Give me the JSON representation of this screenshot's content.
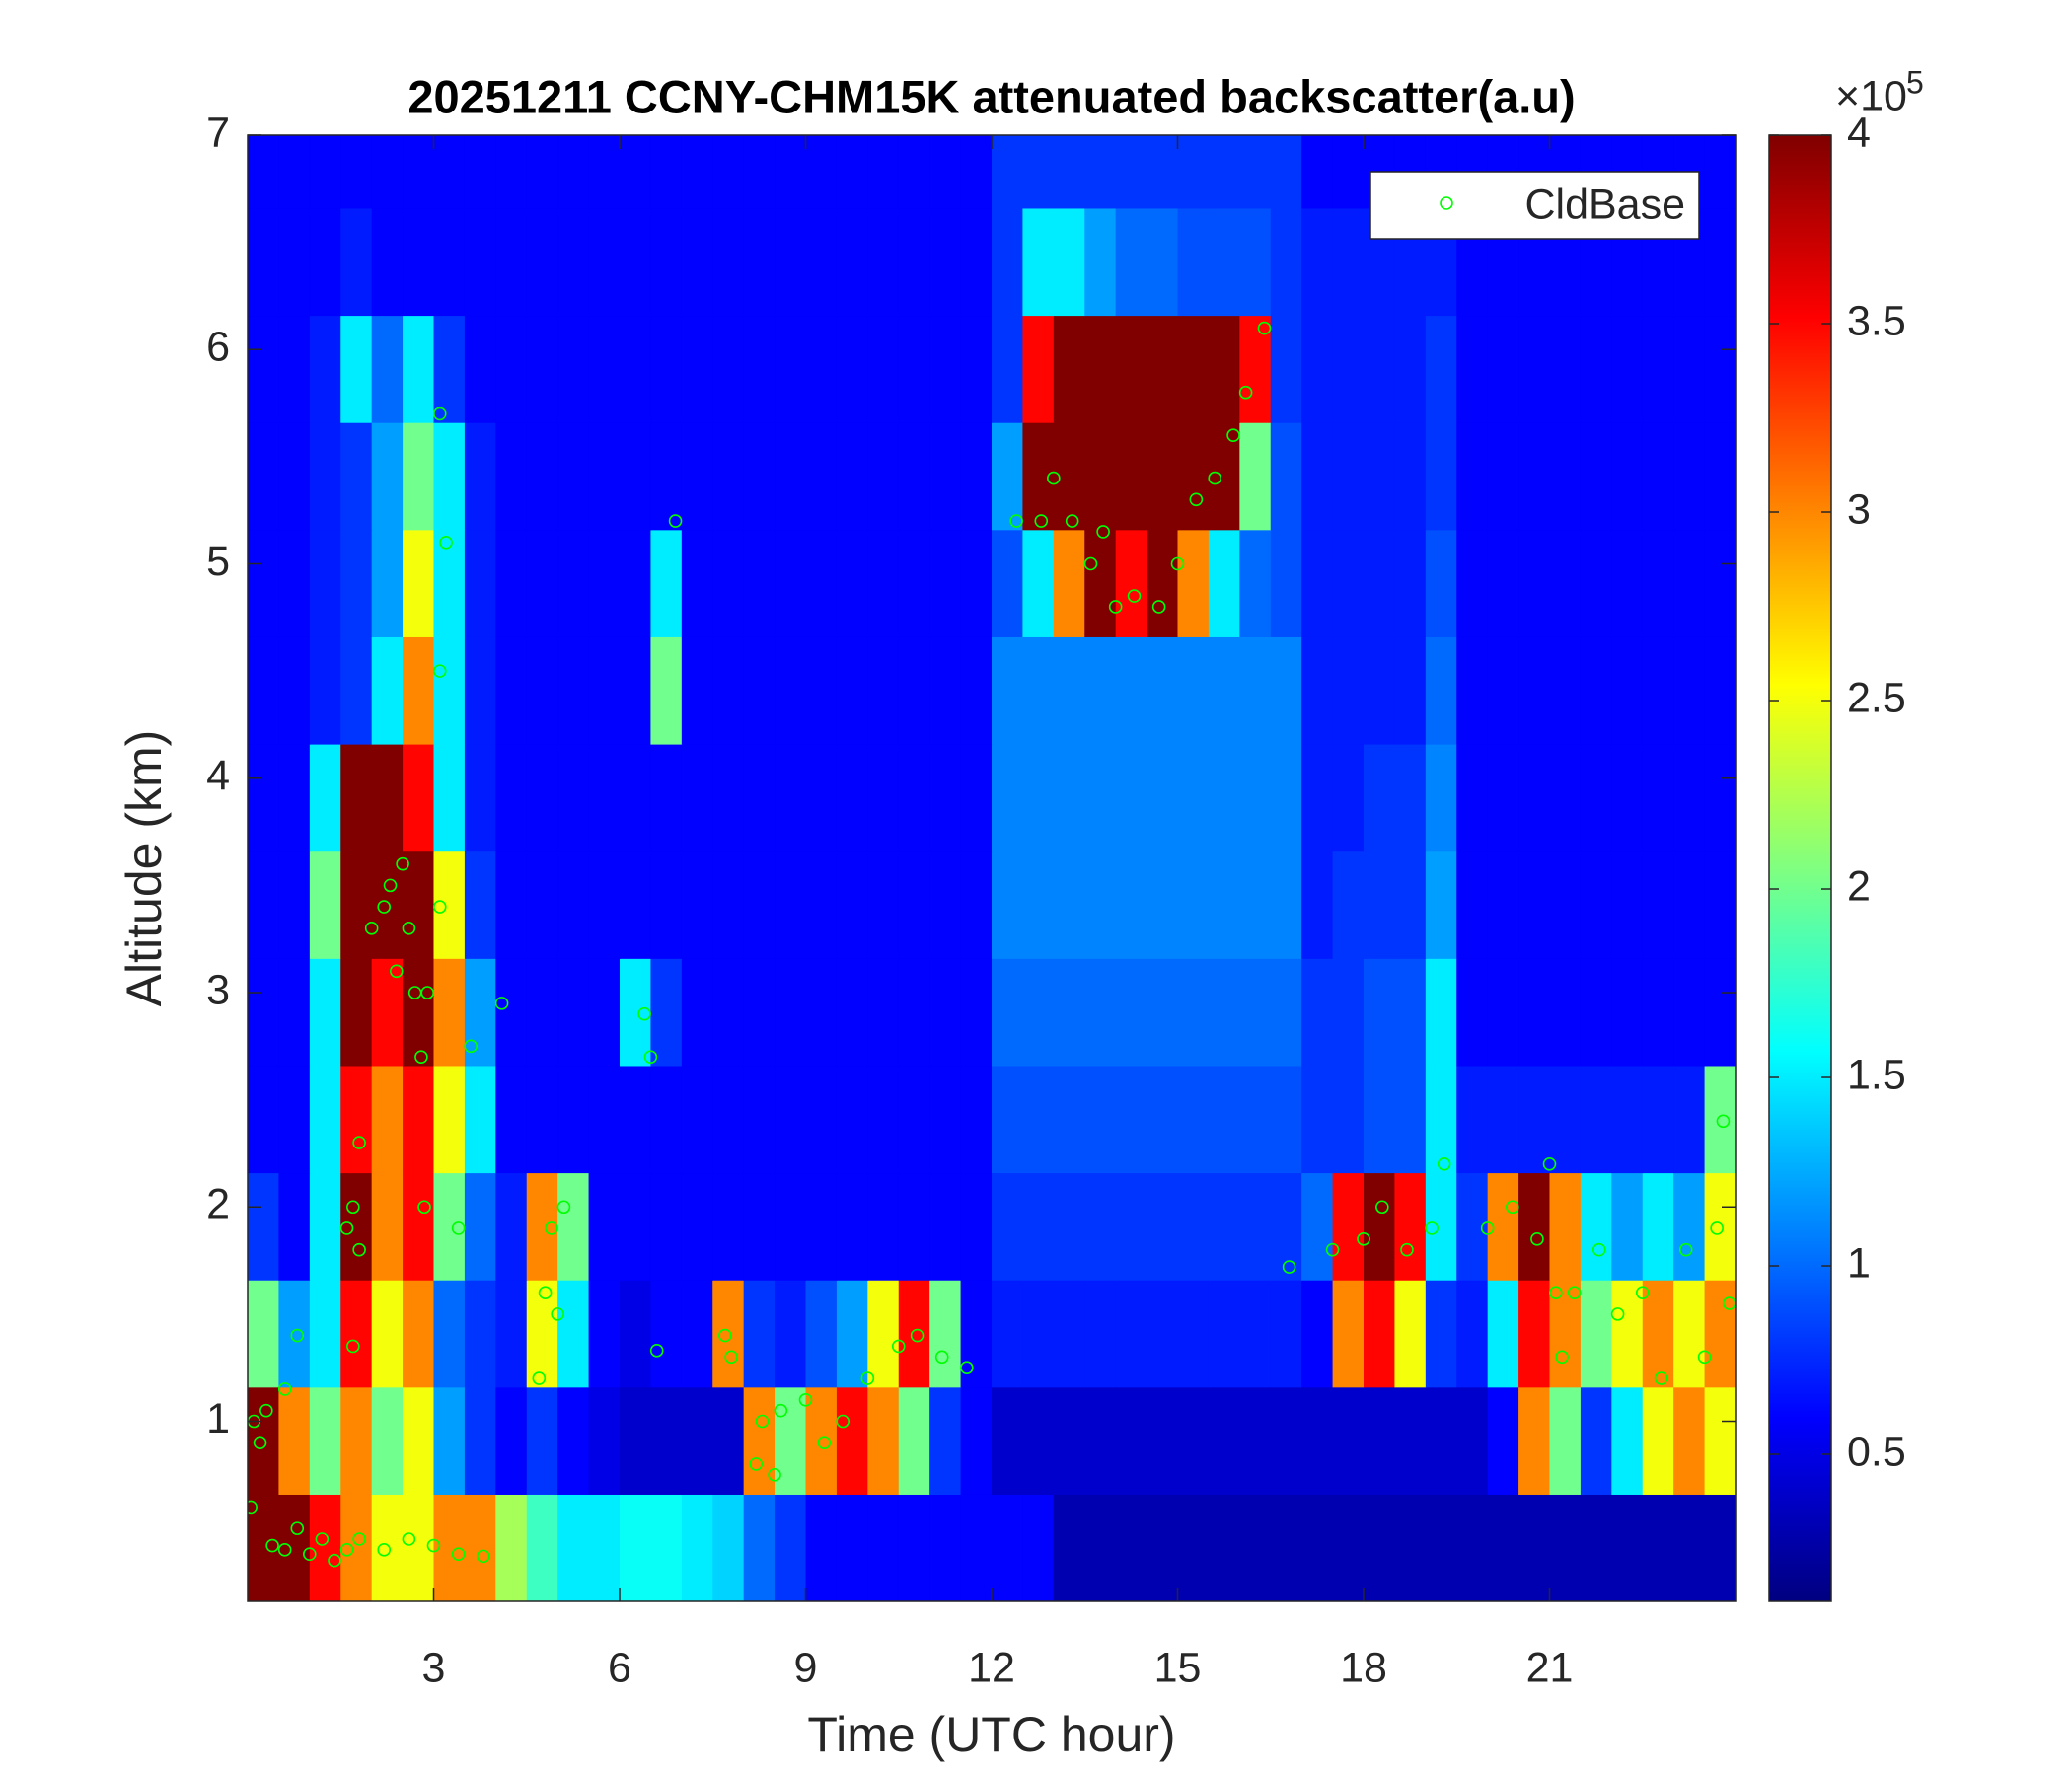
{
  "chart_data": {
    "type": "heatmap",
    "title": "20251211 CCNY-CHM15K attenuated backscatter(a.u)",
    "xlabel": "Time (UTC hour)",
    "ylabel": "Altitude (km)",
    "x": [
      0.25,
      0.75,
      1.25,
      1.75,
      2.25,
      2.75,
      3.25,
      3.75,
      4.25,
      4.75,
      5.25,
      5.75,
      6.25,
      6.75,
      7.25,
      7.75,
      8.25,
      8.75,
      9.25,
      9.75,
      10.25,
      10.75,
      11.25,
      11.75,
      12.25,
      12.75,
      13.25,
      13.75,
      14.25,
      14.75,
      15.25,
      15.75,
      16.25,
      16.75,
      17.25,
      17.75,
      18.25,
      18.75,
      19.25,
      19.75,
      20.25,
      20.75,
      21.25,
      21.75,
      22.25,
      22.75,
      23.25,
      23.75
    ],
    "y": [
      0.41,
      0.91,
      1.41,
      1.91,
      2.41,
      2.91,
      3.41,
      3.91,
      4.41,
      4.91,
      5.41,
      5.91,
      6.41,
      6.91
    ],
    "z": [
      [
        4,
        4,
        3.5,
        3,
        2.5,
        2.5,
        3,
        3,
        2.2,
        1.8,
        1.5,
        1.5,
        1.6,
        1.6,
        1.5,
        1.4,
        1.0,
        0.8,
        0.6,
        0.6,
        0.6,
        0.6,
        0.6,
        0.6,
        0.6,
        0.6,
        0.3,
        0.3,
        0.3,
        0.3,
        0.3,
        0.3,
        0.3,
        0.3,
        0.3,
        0.3,
        0.3,
        0.3,
        0.3,
        0.3,
        0.3,
        0.3,
        0.3,
        0.3,
        0.3,
        0.3,
        0.3,
        0.3
      ],
      [
        4,
        3,
        2,
        3,
        2,
        2.5,
        1.2,
        0.8,
        0.6,
        0.8,
        0.6,
        0.5,
        0.4,
        0.4,
        0.4,
        0.4,
        3,
        2,
        3,
        3.5,
        3,
        2,
        0.8,
        0.6,
        0.4,
        0.4,
        0.4,
        0.4,
        0.4,
        0.4,
        0.4,
        0.4,
        0.4,
        0.4,
        0.4,
        0.4,
        0.4,
        0.4,
        0.4,
        0.4,
        0.6,
        3,
        2,
        0.8,
        1.5,
        2.5,
        3,
        2.5
      ],
      [
        2,
        1.2,
        1.5,
        3.5,
        2.5,
        3,
        1,
        0.8,
        0.7,
        2.5,
        1.5,
        0.6,
        0.5,
        0.6,
        0.6,
        3,
        0.8,
        0.7,
        0.9,
        1.2,
        2.5,
        3.5,
        2,
        0.6,
        0.7,
        0.7,
        0.7,
        0.7,
        0.7,
        0.7,
        0.7,
        0.7,
        0.7,
        0.7,
        0.6,
        3,
        3.5,
        2.5,
        0.8,
        0.7,
        1.5,
        3.5,
        3,
        2,
        2.5,
        3,
        2.5,
        3
      ],
      [
        0.8,
        0.6,
        1.5,
        4,
        3,
        3.5,
        2,
        1,
        0.7,
        3,
        2,
        0.6,
        0.6,
        0.6,
        0.6,
        0.6,
        0.6,
        0.6,
        0.6,
        0.6,
        0.6,
        0.6,
        0.6,
        0.6,
        0.8,
        0.8,
        0.8,
        0.8,
        0.8,
        0.8,
        0.8,
        0.8,
        0.8,
        0.8,
        1,
        3.5,
        4,
        3.5,
        1.5,
        0.8,
        3,
        4,
        3,
        1.5,
        1.2,
        1.5,
        1.2,
        2.5
      ],
      [
        0.6,
        0.6,
        1.5,
        3.5,
        3,
        3.5,
        2.5,
        1.5,
        0.6,
        0.6,
        0.6,
        0.6,
        0.6,
        0.6,
        0.6,
        0.6,
        0.6,
        0.6,
        0.6,
        0.6,
        0.6,
        0.6,
        0.6,
        0.6,
        0.9,
        0.9,
        0.9,
        0.9,
        0.9,
        0.9,
        0.9,
        0.9,
        0.9,
        0.9,
        0.8,
        0.8,
        0.9,
        0.9,
        1.5,
        0.7,
        0.7,
        0.7,
        0.7,
        0.7,
        0.7,
        0.7,
        0.7,
        2
      ],
      [
        0.6,
        0.6,
        1.5,
        4,
        3.5,
        4,
        3,
        1.2,
        0.6,
        0.6,
        0.6,
        0.6,
        1.5,
        0.8,
        0.6,
        0.6,
        0.6,
        0.6,
        0.6,
        0.6,
        0.6,
        0.6,
        0.6,
        0.6,
        1.0,
        1.0,
        1.0,
        1.0,
        1.0,
        1.0,
        1.0,
        1.0,
        1.0,
        1.0,
        0.8,
        0.8,
        0.9,
        0.9,
        1.5,
        0.6,
        0.6,
        0.6,
        0.6,
        0.6,
        0.6,
        0.6,
        0.6,
        0.6
      ],
      [
        0.6,
        0.6,
        2,
        4,
        4,
        4,
        2.5,
        0.8,
        0.6,
        0.6,
        0.6,
        0.6,
        0.6,
        0.6,
        0.6,
        0.6,
        0.6,
        0.6,
        0.6,
        0.6,
        0.6,
        0.6,
        0.6,
        0.6,
        1.1,
        1.1,
        1.1,
        1.1,
        1.1,
        1.1,
        1.1,
        1.1,
        1.1,
        1.1,
        0.7,
        0.8,
        0.8,
        0.8,
        1.2,
        0.6,
        0.6,
        0.6,
        0.6,
        0.6,
        0.6,
        0.6,
        0.6,
        0.6
      ],
      [
        0.6,
        0.6,
        1.5,
        4,
        4,
        3.5,
        1.5,
        0.7,
        0.6,
        0.6,
        0.6,
        0.6,
        0.6,
        0.6,
        0.6,
        0.6,
        0.6,
        0.6,
        0.6,
        0.6,
        0.6,
        0.6,
        0.6,
        0.6,
        1.1,
        1.1,
        1.1,
        1.1,
        1.1,
        1.1,
        1.1,
        1.1,
        1.1,
        1.1,
        0.7,
        0.7,
        0.8,
        0.8,
        1.1,
        0.6,
        0.6,
        0.6,
        0.6,
        0.6,
        0.6,
        0.6,
        0.6,
        0.6
      ],
      [
        0.6,
        0.6,
        0.7,
        0.8,
        1.5,
        3,
        1.5,
        0.7,
        0.6,
        0.6,
        0.6,
        0.6,
        0.6,
        2.0,
        0.6,
        0.6,
        0.6,
        0.6,
        0.6,
        0.6,
        0.6,
        0.6,
        0.6,
        0.6,
        1.1,
        1.1,
        1.1,
        1.1,
        1.1,
        1.1,
        1.1,
        1.1,
        1.1,
        1.1,
        0.7,
        0.7,
        0.7,
        0.7,
        1.0,
        0.6,
        0.6,
        0.6,
        0.6,
        0.6,
        0.6,
        0.6,
        0.6,
        0.6
      ],
      [
        0.6,
        0.6,
        0.7,
        0.8,
        1.2,
        2.5,
        1.5,
        0.7,
        0.6,
        0.6,
        0.6,
        0.6,
        0.6,
        1.5,
        0.6,
        0.6,
        0.6,
        0.6,
        0.6,
        0.6,
        0.6,
        0.6,
        0.6,
        0.6,
        0.9,
        1.5,
        3,
        4,
        3.5,
        4,
        3,
        1.5,
        1,
        0.9,
        0.7,
        0.7,
        0.7,
        0.7,
        0.9,
        0.6,
        0.6,
        0.6,
        0.6,
        0.6,
        0.6,
        0.6,
        0.6,
        0.6
      ],
      [
        0.6,
        0.6,
        0.7,
        0.8,
        1.2,
        2,
        1.5,
        0.7,
        0.6,
        0.6,
        0.6,
        0.6,
        0.6,
        0.6,
        0.6,
        0.6,
        0.6,
        0.6,
        0.6,
        0.6,
        0.6,
        0.6,
        0.6,
        0.6,
        1.2,
        4,
        4,
        4,
        4,
        4,
        4,
        4,
        2,
        0.9,
        0.7,
        0.7,
        0.7,
        0.7,
        0.8,
        0.6,
        0.6,
        0.6,
        0.6,
        0.6,
        0.6,
        0.6,
        0.6,
        0.6
      ],
      [
        0.6,
        0.6,
        0.7,
        1.5,
        1,
        1.5,
        0.8,
        0.6,
        0.6,
        0.6,
        0.6,
        0.6,
        0.6,
        0.6,
        0.6,
        0.6,
        0.6,
        0.6,
        0.6,
        0.6,
        0.6,
        0.6,
        0.6,
        0.6,
        0.8,
        3.5,
        4,
        4,
        4,
        4,
        4,
        4,
        3.5,
        0.8,
        0.7,
        0.7,
        0.7,
        0.7,
        0.8,
        0.6,
        0.6,
        0.6,
        0.6,
        0.6,
        0.6,
        0.6,
        0.6,
        0.6
      ],
      [
        0.6,
        0.6,
        0.6,
        0.7,
        0.6,
        0.6,
        0.6,
        0.6,
        0.6,
        0.6,
        0.6,
        0.6,
        0.6,
        0.6,
        0.6,
        0.6,
        0.6,
        0.6,
        0.6,
        0.6,
        0.6,
        0.6,
        0.6,
        0.6,
        0.8,
        1.5,
        1.5,
        1.2,
        1,
        1,
        0.9,
        0.9,
        0.9,
        0.8,
        0.7,
        0.7,
        0.7,
        0.7,
        0.7,
        0.6,
        0.6,
        0.6,
        0.6,
        0.6,
        0.6,
        0.6,
        0.6,
        0.6
      ],
      [
        0.6,
        0.6,
        0.6,
        0.6,
        0.6,
        0.6,
        0.6,
        0.6,
        0.6,
        0.6,
        0.6,
        0.6,
        0.6,
        0.6,
        0.6,
        0.6,
        0.6,
        0.6,
        0.6,
        0.6,
        0.6,
        0.6,
        0.6,
        0.6,
        0.8,
        0.8,
        0.8,
        0.8,
        0.8,
        0.8,
        0.8,
        0.8,
        0.8,
        0.8,
        0.6,
        0.6,
        0.6,
        0.6,
        0.6,
        0.6,
        0.6,
        0.6,
        0.6,
        0.6,
        0.6,
        0.6,
        0.6,
        0.6
      ]
    ],
    "xlim": [
      0,
      24
    ],
    "ylim": [
      0.16,
      7
    ],
    "xticks": [
      3,
      6,
      9,
      12,
      15,
      18,
      21
    ],
    "yticks": [
      1,
      2,
      3,
      4,
      5,
      6,
      7
    ],
    "colormap": "jet",
    "clim": [
      0.11,
      4
    ],
    "colorbar_ticks": [
      0.5,
      1,
      1.5,
      2,
      2.5,
      3,
      3.5,
      4
    ],
    "colorbar_multiplier": {
      "base": "×10",
      "exponent": "5"
    },
    "legend": "upper right",
    "overlay": {
      "type": "scatter",
      "name": "CldBase",
      "color": "#00ff00",
      "marker": "open-circle",
      "x": [
        0.05,
        0.1,
        0.2,
        0.3,
        0.4,
        0.6,
        0.8,
        1.0,
        1.2,
        1.4,
        1.6,
        1.8,
        2.2,
        2.6,
        3.0,
        3.4,
        3.8,
        0.6,
        0.8,
        1.6,
        1.7,
        1.8,
        1.7,
        1.8,
        2.0,
        2.2,
        2.3,
        2.4,
        2.5,
        2.6,
        2.7,
        2.8,
        2.9,
        2.85,
        3.1,
        3.1,
        3.2,
        3.1,
        3.4,
        3.6,
        4.1,
        4.7,
        4.8,
        4.9,
        5.0,
        5.1,
        6.4,
        6.5,
        6.6,
        6.9,
        7.7,
        7.8,
        8.2,
        8.3,
        8.5,
        8.6,
        9.0,
        9.3,
        9.6,
        10.0,
        10.5,
        10.8,
        11.2,
        11.6,
        12.4,
        12.8,
        13.0,
        13.3,
        13.6,
        13.8,
        14.0,
        14.3,
        14.7,
        15.0,
        15.3,
        15.6,
        15.9,
        16.1,
        16.4,
        16.8,
        17.5,
        18.0,
        18.3,
        18.7,
        19.1,
        19.3,
        20.0,
        20.4,
        20.8,
        21.0,
        21.1,
        21.2,
        21.4,
        21.8,
        22.1,
        22.5,
        22.8,
        23.2,
        23.5,
        23.7,
        23.8,
        23.9
      ],
      "y": [
        0.6,
        1.0,
        0.9,
        1.05,
        0.42,
        0.4,
        0.5,
        0.38,
        0.45,
        0.35,
        0.4,
        0.45,
        0.4,
        0.45,
        0.42,
        0.38,
        0.37,
        1.15,
        1.4,
        1.9,
        2.0,
        1.8,
        1.35,
        2.3,
        3.3,
        3.4,
        3.5,
        3.1,
        3.6,
        3.3,
        3.0,
        2.7,
        3.0,
        2.0,
        3.4,
        4.5,
        5.1,
        5.7,
        1.9,
        2.75,
        2.95,
        1.2,
        1.6,
        1.9,
        1.5,
        2.0,
        2.9,
        2.7,
        1.33,
        5.2,
        1.4,
        1.3,
        0.8,
        1.0,
        0.75,
        1.05,
        1.1,
        0.9,
        1.0,
        1.2,
        1.35,
        1.4,
        1.3,
        1.25,
        5.2,
        5.2,
        5.4,
        5.2,
        5.0,
        5.15,
        4.8,
        4.85,
        4.8,
        5.0,
        5.3,
        5.4,
        5.6,
        5.8,
        6.1,
        1.72,
        1.8,
        1.85,
        2.0,
        1.8,
        1.9,
        2.2,
        1.9,
        2.0,
        1.85,
        2.2,
        1.6,
        1.3,
        1.6,
        1.8,
        1.5,
        1.6,
        1.2,
        1.8,
        1.3,
        1.9,
        2.4,
        1.55
      ]
    }
  }
}
